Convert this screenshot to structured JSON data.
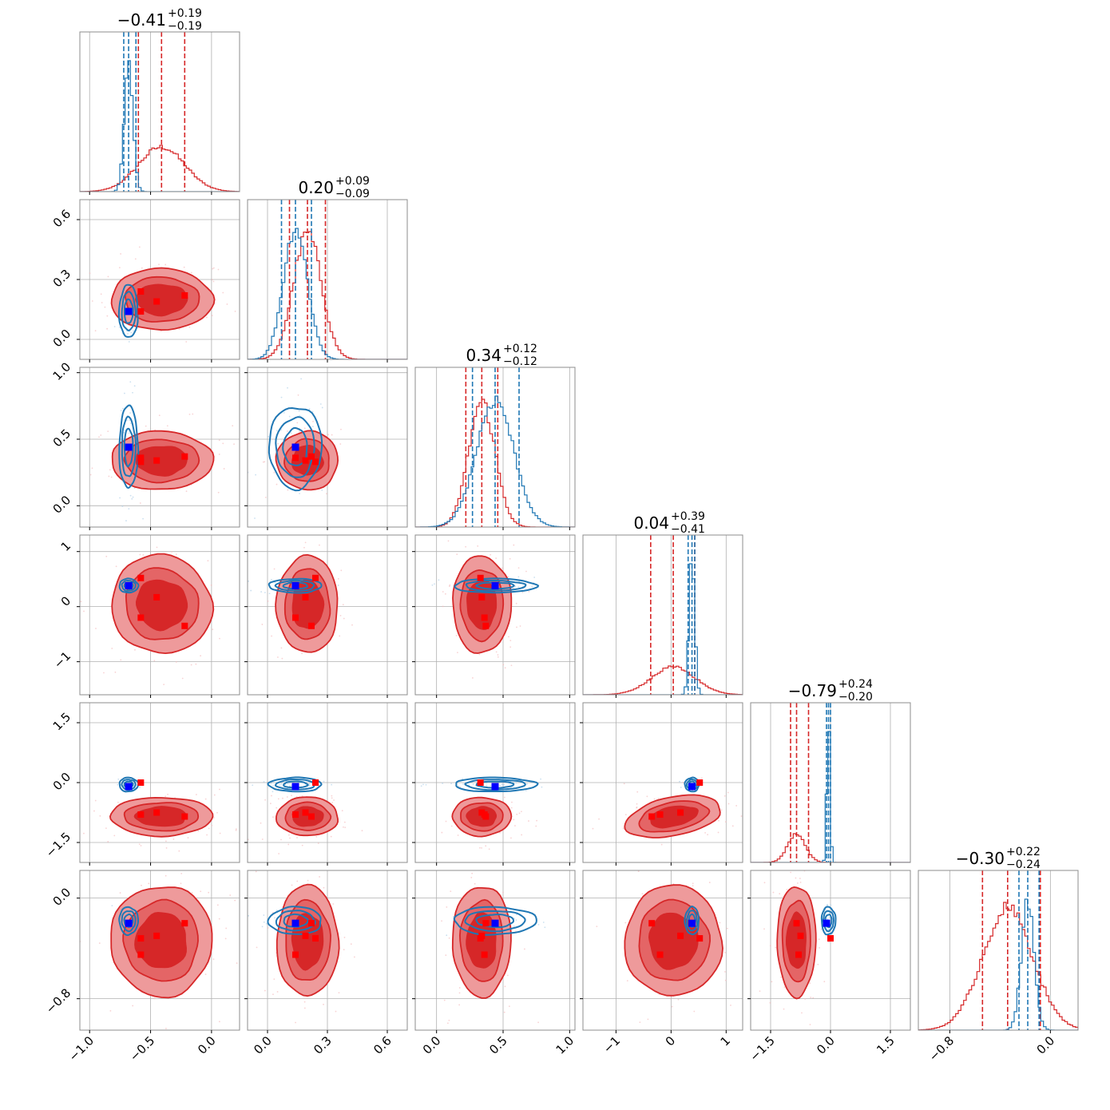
{
  "colors": {
    "red": "#d62728",
    "red_fill_dark": "#d62728",
    "red_fill_light": "#ee9a9b",
    "blue": "#1f77b4",
    "marker_blue": "#0000ff",
    "marker_red": "#ff0000",
    "grid": "#b0b0b0"
  },
  "chart_data": {
    "type": "scatter",
    "title": "",
    "kind": "corner-plot",
    "params": [
      {
        "range": [
          -1.08,
          0.23
        ],
        "ticks": [
          -1.0,
          -0.5,
          0.0
        ],
        "tick_labels": [
          "−1.0",
          "−0.5",
          "0.0"
        ],
        "title_value": "−0.41",
        "title_plus": "+0.19",
        "title_minus": "−0.19",
        "red": {
          "mu": -0.41,
          "sigma": 0.19,
          "q": [
            -0.6,
            -0.22
          ]
        },
        "blue": {
          "mu": -0.68,
          "sigma": 0.035,
          "q": [
            -0.72,
            -0.62
          ]
        }
      },
      {
        "range": [
          -0.1,
          0.7
        ],
        "ticks": [
          0.0,
          0.3,
          0.6
        ],
        "tick_labels": [
          "0.0",
          "0.3",
          "0.6"
        ],
        "title_value": "0.20",
        "title_plus": "+0.09",
        "title_minus": "−0.09",
        "red": {
          "mu": 0.2,
          "sigma": 0.07,
          "q": [
            0.11,
            0.29
          ]
        },
        "blue": {
          "mu": 0.14,
          "sigma": 0.06,
          "q": [
            0.07,
            0.22
          ]
        }
      },
      {
        "range": [
          -0.16,
          1.04
        ],
        "ticks": [
          0.0,
          0.5,
          1.0
        ],
        "tick_labels": [
          "0.0",
          "0.5",
          "1.0"
        ],
        "title_value": "0.34",
        "title_plus": "+0.12",
        "title_minus": "−0.12",
        "red": {
          "mu": 0.34,
          "sigma": 0.1,
          "q": [
            0.22,
            0.46
          ]
        },
        "blue": {
          "mu": 0.44,
          "sigma": 0.14,
          "q": [
            0.27,
            0.62
          ]
        }
      },
      {
        "range": [
          -1.6,
          1.3
        ],
        "ticks": [
          -1,
          0,
          1
        ],
        "tick_labels": [
          "−1",
          "0",
          "1"
        ],
        "title_value": "0.04",
        "title_plus": "+0.39",
        "title_minus": "−0.41",
        "red": {
          "mu": 0.04,
          "sigma": 0.4,
          "q": [
            -0.37,
            0.43
          ]
        },
        "blue": {
          "mu": 0.38,
          "sigma": 0.05,
          "q": [
            0.31,
            0.43
          ]
        }
      },
      {
        "range": [
          -2.0,
          2.0
        ],
        "ticks": [
          -1.5,
          0.0,
          1.5
        ],
        "tick_labels": [
          "−1.5",
          "0.0",
          "1.5"
        ],
        "title_value": "−0.79",
        "title_plus": "+0.24",
        "title_minus": "−0.20",
        "red": {
          "mu": -0.85,
          "sigma": 0.22,
          "q": [
            -1.0,
            -0.55
          ]
        },
        "blue": {
          "mu": -0.05,
          "sigma": 0.04,
          "q": [
            -0.1,
            0.0
          ]
        }
      },
      {
        "range": [
          -1.05,
          0.22
        ],
        "ticks": [
          -0.8,
          0.0
        ],
        "tick_labels": [
          "−0.8",
          "0.0"
        ],
        "title_value": "−0.30",
        "title_plus": "+0.22",
        "title_minus": "−0.24",
        "red": {
          "mu": -0.34,
          "sigma": 0.2,
          "q": [
            -0.54,
            -0.08
          ]
        },
        "blue": {
          "mu": -0.18,
          "sigma": 0.05,
          "q": [
            -0.25,
            -0.09
          ]
        }
      }
    ],
    "blue_markers": [
      [
        -0.68,
        0.14,
        0.44,
        0.38,
        -0.1,
        -0.2
      ],
      [
        -0.68,
        0.14,
        0.44,
        0.38,
        -0.1,
        -0.2
      ],
      [
        -0.68,
        0.14,
        0.44,
        0.38,
        -0.1,
        -0.2
      ]
    ],
    "red_markers": [
      [
        -0.58,
        0.24,
        0.33,
        0.52,
        -0.0,
        -0.32
      ],
      [
        -0.58,
        0.14,
        0.36,
        -0.2,
        -0.8,
        -0.45
      ],
      [
        -0.45,
        0.19,
        0.34,
        0.17,
        -0.75,
        -0.3
      ],
      [
        -0.22,
        0.22,
        0.37,
        -0.35,
        -0.85,
        -0.2
      ]
    ]
  }
}
